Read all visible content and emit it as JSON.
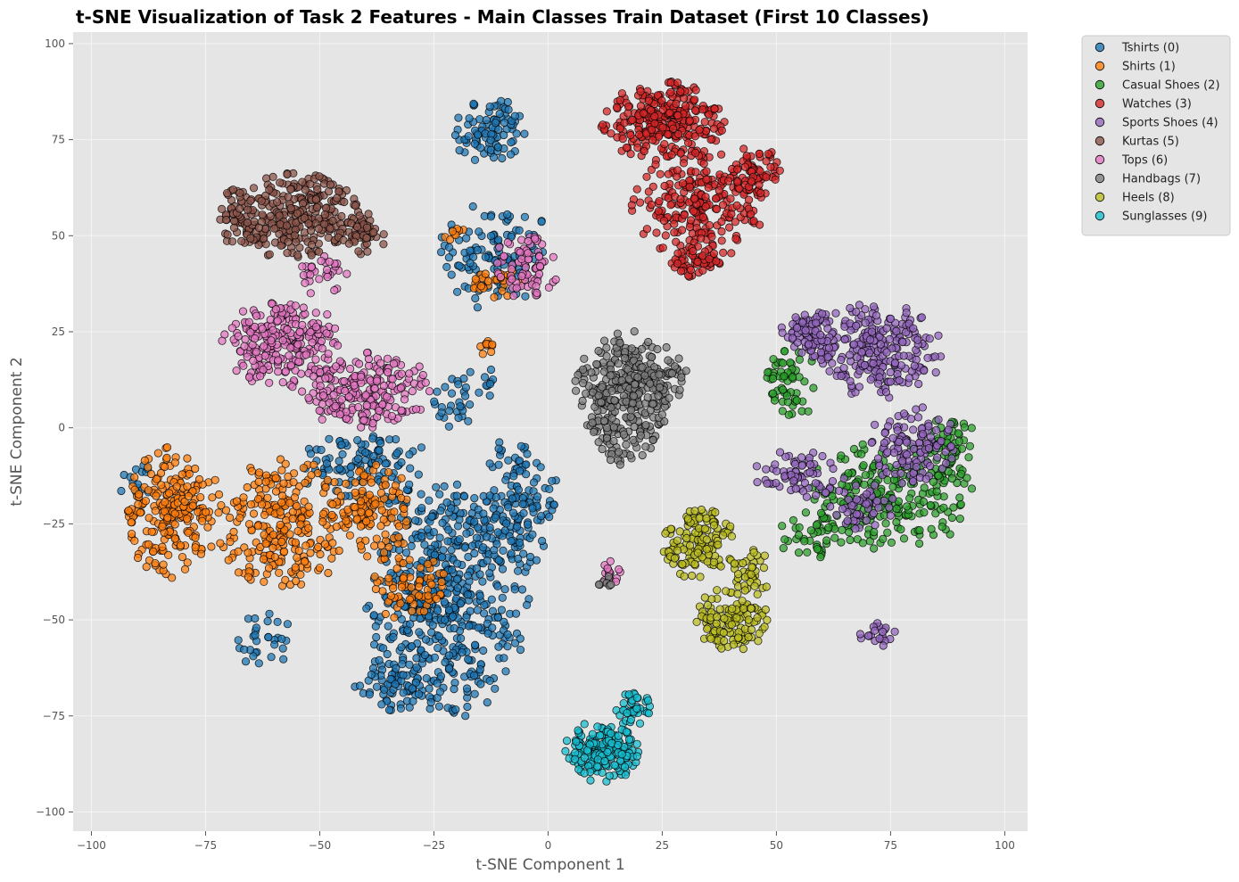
{
  "chart_data": {
    "type": "scatter",
    "title": "t-SNE Visualization of Task 2 Features - Main Classes Train Dataset (First 10 Classes)",
    "xlabel": "t-SNE Component 1",
    "ylabel": "t-SNE Component 2",
    "xlim": [
      -104,
      105
    ],
    "ylim": [
      -105,
      103
    ],
    "xticks": [
      -100,
      -75,
      -50,
      -25,
      0,
      25,
      50,
      75,
      100
    ],
    "yticks": [
      -100,
      -75,
      -50,
      -25,
      0,
      25,
      50,
      75,
      100
    ],
    "xtick_labels": [
      "−100",
      "−75",
      "−50",
      "−25",
      "0",
      "25",
      "50",
      "75",
      "100"
    ],
    "ytick_labels": [
      "−100",
      "−75",
      "−50",
      "−25",
      "0",
      "25",
      "50",
      "75",
      "100"
    ],
    "grid": true,
    "background": "#e5e5e5",
    "legend_position": "outside-top-right",
    "marker_edge_color": "#000000",
    "series": [
      {
        "name": "Tshirts (0)",
        "color": "#1f77b4",
        "clusters": [
          {
            "cx": -13,
            "cy": 78,
            "rx": 8,
            "ry": 9,
            "n": 90
          },
          {
            "cx": -12,
            "cy": 45,
            "rx": 13,
            "ry": 14,
            "n": 110
          },
          {
            "cx": -22,
            "cy": -45,
            "rx": 17,
            "ry": 30,
            "n": 520
          },
          {
            "cx": -7,
            "cy": -20,
            "rx": 9,
            "ry": 18,
            "n": 140
          },
          {
            "cx": -40,
            "cy": -10,
            "rx": 14,
            "ry": 10,
            "n": 110
          },
          {
            "cx": -34,
            "cy": -67,
            "rx": 8,
            "ry": 8,
            "n": 60
          },
          {
            "cx": -62,
            "cy": -55,
            "rx": 6,
            "ry": 8,
            "n": 30
          },
          {
            "cx": -90,
            "cy": -14,
            "rx": 4,
            "ry": 5,
            "n": 14
          },
          {
            "cx": -20,
            "cy": 8,
            "rx": 6,
            "ry": 8,
            "n": 30
          },
          {
            "cx": -12,
            "cy": 12,
            "rx": 2,
            "ry": 4,
            "n": 8
          }
        ]
      },
      {
        "name": "Shirts (1)",
        "color": "#ff7f0e",
        "clusters": [
          {
            "cx": -82,
            "cy": -22,
            "rx": 10,
            "ry": 17,
            "n": 230
          },
          {
            "cx": -58,
            "cy": -25,
            "rx": 14,
            "ry": 17,
            "n": 260
          },
          {
            "cx": -38,
            "cy": -22,
            "rx": 8,
            "ry": 12,
            "n": 110
          },
          {
            "cx": -30,
            "cy": -42,
            "rx": 8,
            "ry": 10,
            "n": 70
          },
          {
            "cx": -11,
            "cy": 38,
            "rx": 6,
            "ry": 4,
            "n": 30
          },
          {
            "cx": -13,
            "cy": 21,
            "rx": 2,
            "ry": 3,
            "n": 10
          },
          {
            "cx": -20,
            "cy": 50,
            "rx": 3,
            "ry": 2,
            "n": 8
          }
        ]
      },
      {
        "name": "Casual Shoes (2)",
        "color": "#2ca02c",
        "clusters": [
          {
            "cx": 75,
            "cy": -18,
            "rx": 18,
            "ry": 14,
            "n": 220
          },
          {
            "cx": 53,
            "cy": 12,
            "rx": 6,
            "ry": 10,
            "n": 60
          },
          {
            "cx": 88,
            "cy": -6,
            "rx": 6,
            "ry": 10,
            "n": 60
          },
          {
            "cx": 58,
            "cy": -28,
            "rx": 8,
            "ry": 6,
            "n": 40
          }
        ]
      },
      {
        "name": "Watches (3)",
        "color": "#d62728",
        "clusters": [
          {
            "cx": 25,
            "cy": 80,
            "rx": 13,
            "ry": 10,
            "n": 280
          },
          {
            "cx": 33,
            "cy": 58,
            "rx": 14,
            "ry": 14,
            "n": 240
          },
          {
            "cx": 45,
            "cy": 66,
            "rx": 6,
            "ry": 7,
            "n": 70
          },
          {
            "cx": 32,
            "cy": 43,
            "rx": 6,
            "ry": 4,
            "n": 50
          }
        ]
      },
      {
        "name": "Sports Shoes (4)",
        "color": "#9467bd",
        "clusters": [
          {
            "cx": 72,
            "cy": 20,
            "rx": 14,
            "ry": 12,
            "n": 250
          },
          {
            "cx": 57,
            "cy": 25,
            "rx": 6,
            "ry": 6,
            "n": 70
          },
          {
            "cx": 80,
            "cy": -5,
            "rx": 10,
            "ry": 10,
            "n": 120
          },
          {
            "cx": 55,
            "cy": -12,
            "rx": 10,
            "ry": 6,
            "n": 70
          },
          {
            "cx": 72,
            "cy": -54,
            "rx": 4,
            "ry": 3,
            "n": 22
          },
          {
            "cx": 68,
            "cy": -20,
            "rx": 8,
            "ry": 6,
            "n": 50
          }
        ]
      },
      {
        "name": "Kurtas (5)",
        "color": "#8c564b",
        "clusters": [
          {
            "cx": -55,
            "cy": 55,
            "rx": 14,
            "ry": 11,
            "n": 300
          },
          {
            "cx": -40,
            "cy": 50,
            "rx": 5,
            "ry": 6,
            "n": 40
          },
          {
            "cx": -68,
            "cy": 55,
            "rx": 4,
            "ry": 8,
            "n": 40
          }
        ]
      },
      {
        "name": "Tops (6)",
        "color": "#e377c2",
        "clusters": [
          {
            "cx": -58,
            "cy": 22,
            "rx": 13,
            "ry": 11,
            "n": 240
          },
          {
            "cx": -40,
            "cy": 10,
            "rx": 14,
            "ry": 10,
            "n": 220
          },
          {
            "cx": -5,
            "cy": 42,
            "rx": 7,
            "ry": 9,
            "n": 80
          },
          {
            "cx": -50,
            "cy": 40,
            "rx": 6,
            "ry": 5,
            "n": 30
          },
          {
            "cx": 14,
            "cy": -37,
            "rx": 3,
            "ry": 4,
            "n": 16
          }
        ]
      },
      {
        "name": "Handbags (7)",
        "color": "#7f7f7f",
        "clusters": [
          {
            "cx": 16,
            "cy": 8,
            "rx": 10,
            "ry": 17,
            "n": 300
          },
          {
            "cx": 24,
            "cy": 12,
            "rx": 7,
            "ry": 9,
            "n": 80
          },
          {
            "cx": 12,
            "cy": -40,
            "rx": 2,
            "ry": 2,
            "n": 8
          }
        ]
      },
      {
        "name": "Heels (8)",
        "color": "#bcbd22",
        "clusters": [
          {
            "cx": 33,
            "cy": -30,
            "rx": 8,
            "ry": 9,
            "n": 140
          },
          {
            "cx": 40,
            "cy": -50,
            "rx": 8,
            "ry": 8,
            "n": 120
          },
          {
            "cx": 44,
            "cy": -38,
            "rx": 5,
            "ry": 6,
            "n": 40
          }
        ]
      },
      {
        "name": "Sunglasses (9)",
        "color": "#17becf",
        "clusters": [
          {
            "cx": 12,
            "cy": -84,
            "rx": 8,
            "ry": 8,
            "n": 180
          },
          {
            "cx": 19,
            "cy": -73,
            "rx": 4,
            "ry": 5,
            "n": 40
          }
        ]
      }
    ]
  }
}
